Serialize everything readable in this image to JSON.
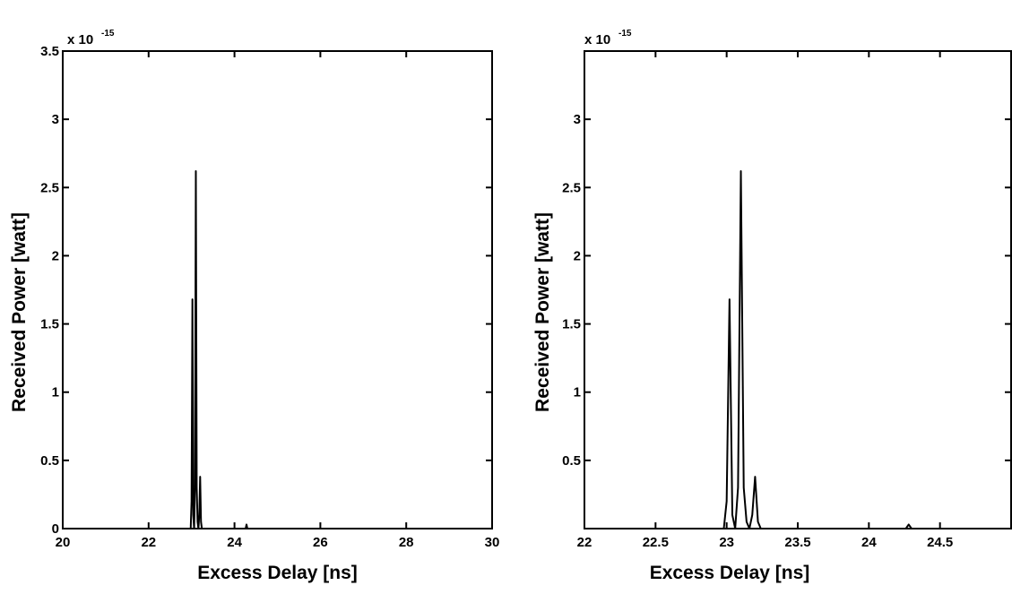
{
  "chart_data": [
    {
      "type": "line",
      "multiplier": "x 10",
      "multiplier_exponent": "-15",
      "x_label": "Excess Delay [ns]",
      "y_label": "Received Power [watt]",
      "xlim": [
        20,
        30
      ],
      "xticks": [
        20,
        22,
        24,
        26,
        28,
        30
      ],
      "ylim": [
        0,
        3.5
      ],
      "yticks": [
        0,
        0.5,
        1,
        1.5,
        2,
        2.5,
        3,
        3.5
      ],
      "grid": false,
      "color": "#000000",
      "x": [
        20,
        22.98,
        23.0,
        23.02,
        23.04,
        23.06,
        23.08,
        23.1,
        23.12,
        23.14,
        23.16,
        23.18,
        23.2,
        23.22,
        23.24,
        24.26,
        24.28,
        24.3,
        30
      ],
      "values": [
        0,
        0,
        0.2,
        1.68,
        0.1,
        0,
        0.3,
        2.62,
        0.3,
        0.05,
        0,
        0.1,
        0.38,
        0.05,
        0,
        0,
        0.03,
        0,
        0
      ]
    },
    {
      "type": "line",
      "multiplier": "x 10",
      "multiplier_exponent": "-15",
      "x_label": "Excess Delay [ns]",
      "y_label": "Received Power [watt]",
      "xlim": [
        22,
        25
      ],
      "xticks": [
        22,
        22.5,
        23,
        23.5,
        24,
        24.5
      ],
      "ylim": [
        0,
        3.5
      ],
      "yticks": [
        0.5,
        1,
        1.5,
        2,
        2.5,
        3
      ],
      "grid": false,
      "color": "#000000",
      "x": [
        22,
        22.98,
        23.0,
        23.02,
        23.04,
        23.06,
        23.08,
        23.1,
        23.12,
        23.14,
        23.16,
        23.18,
        23.2,
        23.22,
        23.24,
        24.26,
        24.28,
        24.3,
        25
      ],
      "values": [
        0,
        0,
        0.2,
        1.68,
        0.1,
        0,
        0.3,
        2.62,
        0.3,
        0.05,
        0,
        0.1,
        0.38,
        0.05,
        0,
        0,
        0.03,
        0,
        0
      ]
    }
  ]
}
